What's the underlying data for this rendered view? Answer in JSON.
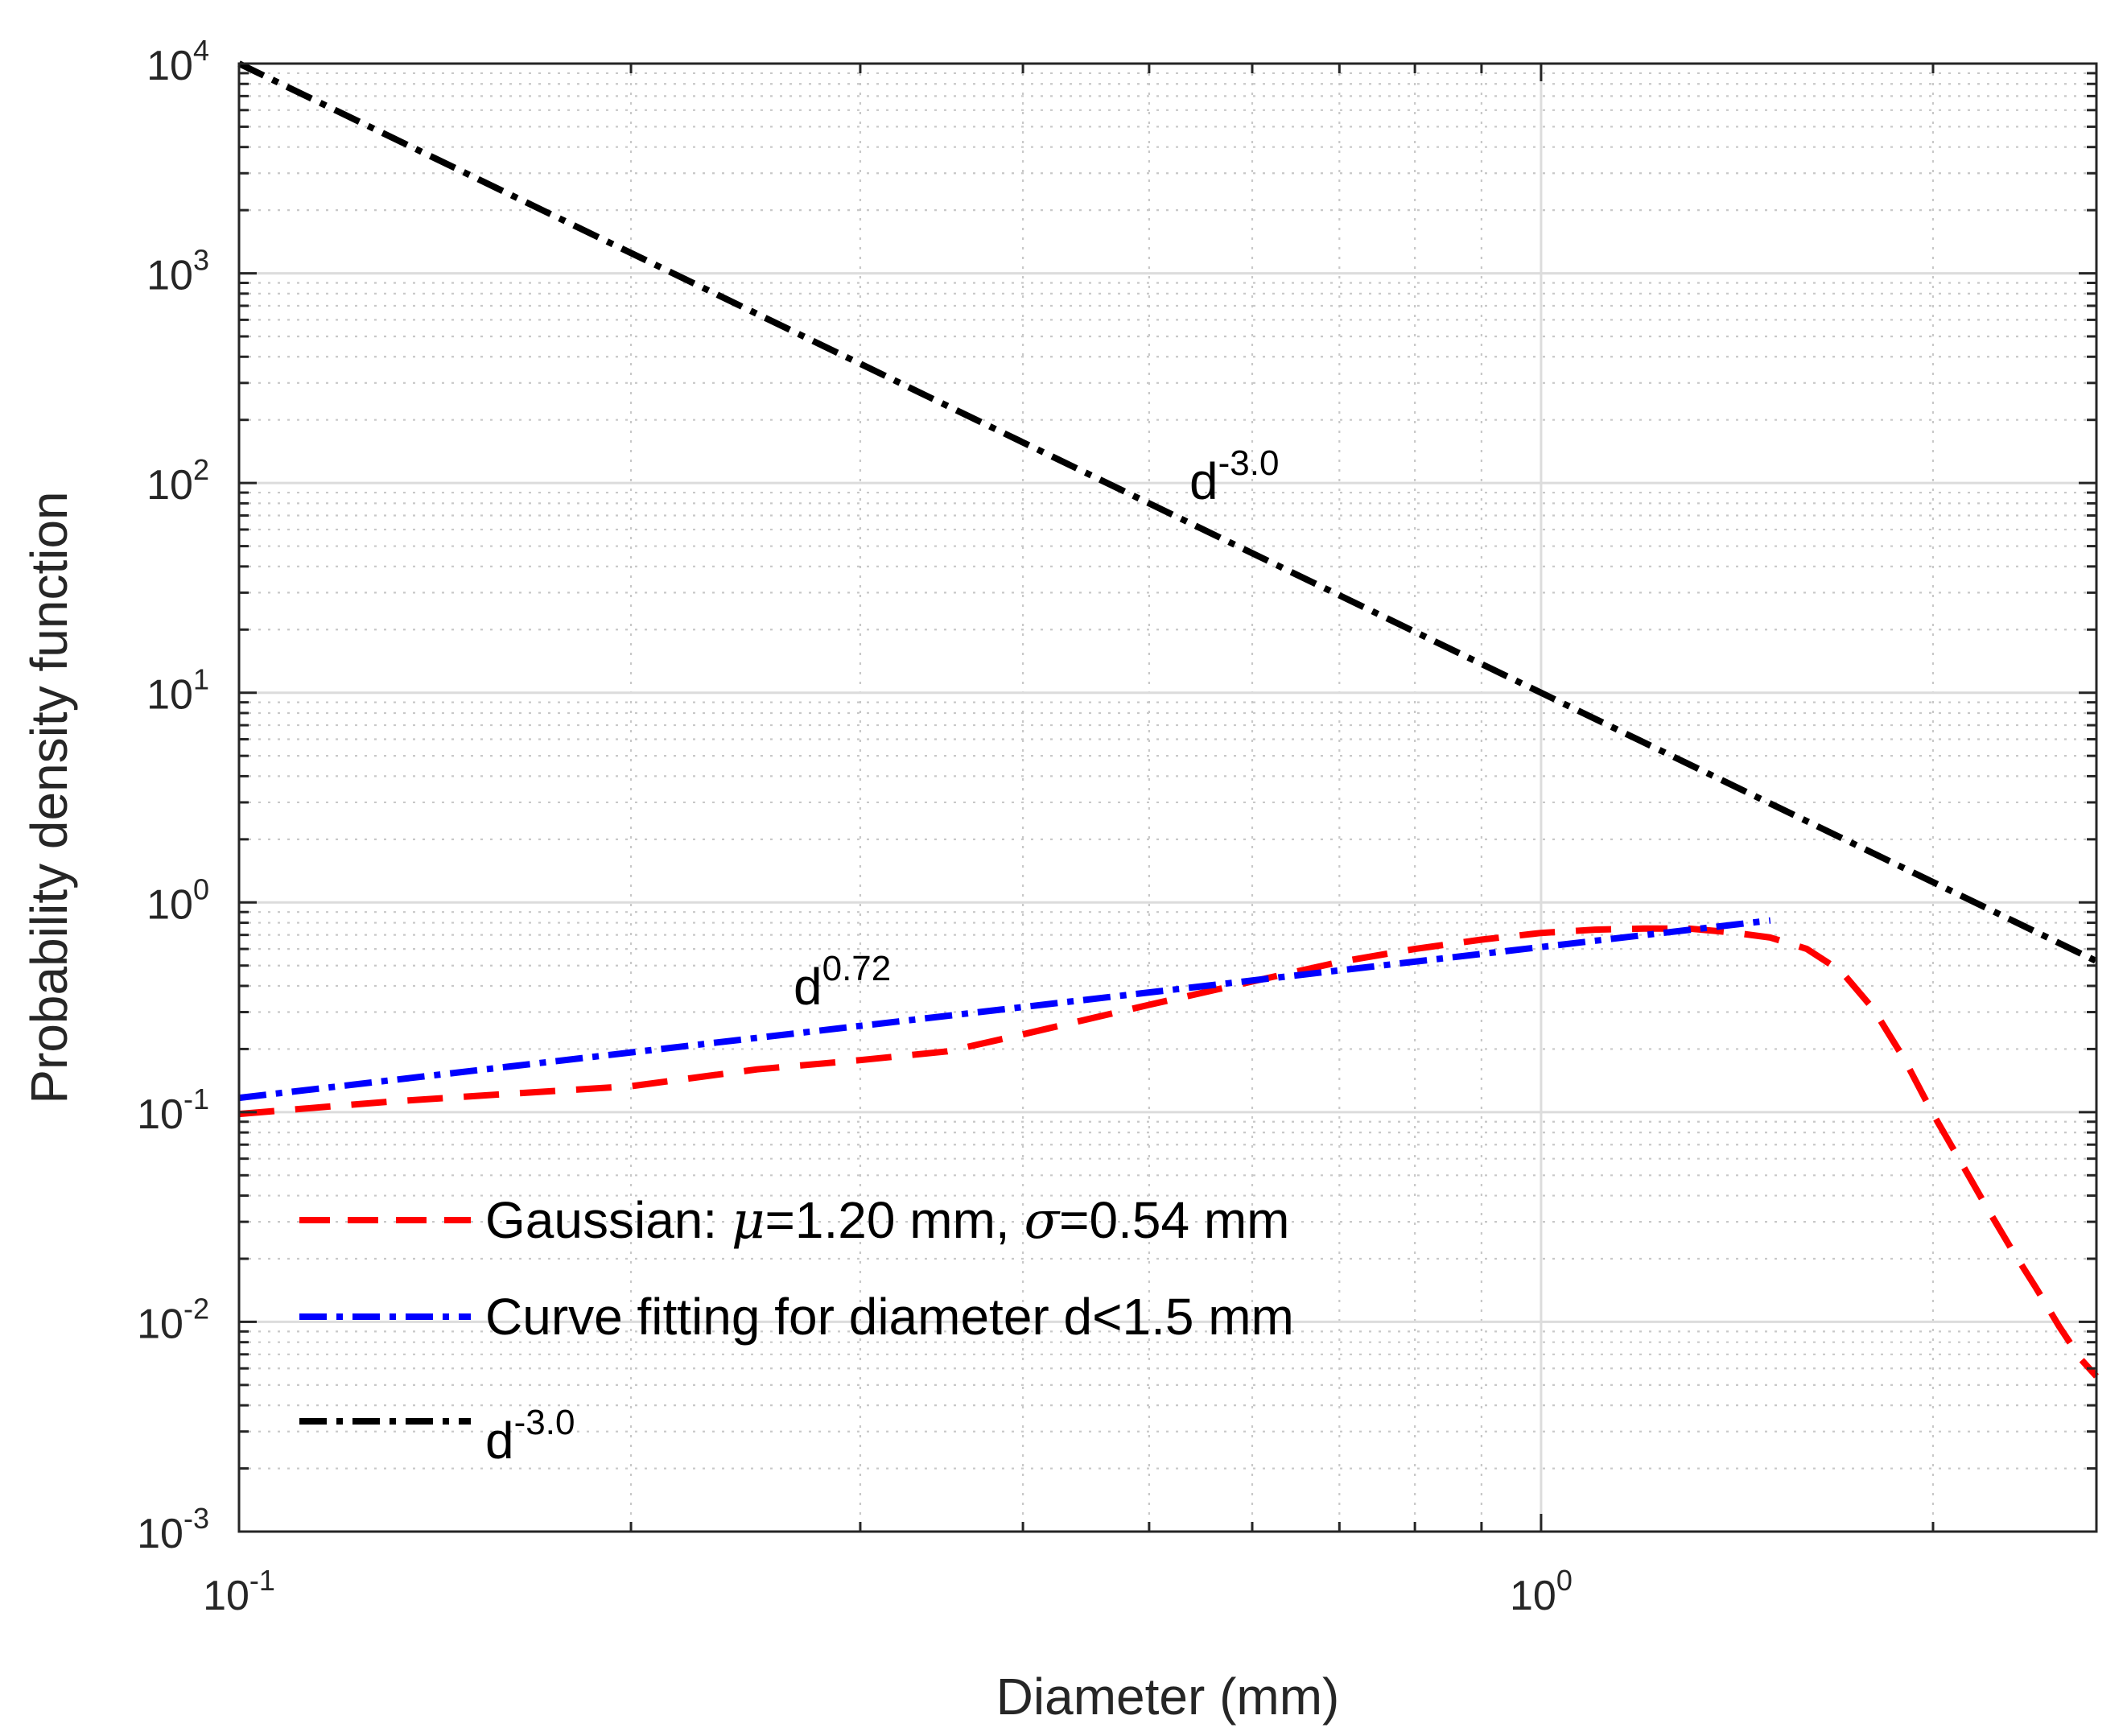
{
  "chart_data": {
    "type": "line",
    "xscale": "log",
    "yscale": "log",
    "xlim": [
      0.1,
      2.67
    ],
    "ylim": [
      0.001,
      10000
    ],
    "xlabel": "Diameter (mm)",
    "ylabel": "Probability density function",
    "x_ticks": [
      {
        "base": "10",
        "exp": "-1",
        "value": 0.1
      },
      {
        "base": "10",
        "exp": "0",
        "value": 1
      }
    ],
    "y_ticks": [
      {
        "base": "10",
        "exp": "-3",
        "value": 0.001
      },
      {
        "base": "10",
        "exp": "-2",
        "value": 0.01
      },
      {
        "base": "10",
        "exp": "-1",
        "value": 0.1
      },
      {
        "base": "10",
        "exp": "0",
        "value": 1
      },
      {
        "base": "10",
        "exp": "1",
        "value": 10
      },
      {
        "base": "10",
        "exp": "2",
        "value": 100
      },
      {
        "base": "10",
        "exp": "3",
        "value": 1000
      },
      {
        "base": "10",
        "exp": "4",
        "value": 10000
      }
    ],
    "grid": "major and minor",
    "series": [
      {
        "name": "Gaussian",
        "legend_parts": {
          "prefix": "Gaussian: ",
          "mu_symbol": "μ",
          "mu_text": "=1.20 mm, ",
          "sigma_symbol": "σ",
          "sigma_text": "=0.54 mm"
        },
        "color": "#ff0000",
        "style": "dashed",
        "x": [
          0.1,
          0.13,
          0.16,
          0.2,
          0.25,
          0.3,
          0.35,
          0.4,
          0.5,
          0.6,
          0.7,
          0.8,
          0.9,
          1.0,
          1.1,
          1.2,
          1.3,
          1.4,
          1.5,
          1.6,
          1.7,
          1.8,
          1.9,
          2.0,
          2.1,
          2.2,
          2.3,
          2.4,
          2.5,
          2.6,
          2.67
        ],
        "y": [
          0.098,
          0.112,
          0.122,
          0.133,
          0.16,
          0.177,
          0.195,
          0.235,
          0.325,
          0.42,
          0.52,
          0.6,
          0.665,
          0.715,
          0.742,
          0.75,
          0.75,
          0.72,
          0.68,
          0.6,
          0.47,
          0.31,
          0.18,
          0.098,
          0.058,
          0.035,
          0.022,
          0.0145,
          0.0095,
          0.0066,
          0.0055
        ]
      },
      {
        "name": "Curve fitting for diameter d<1.5 mm",
        "color": "#0000ff",
        "style": "dash-dot",
        "x": [
          0.1,
          1.5
        ],
        "y": [
          0.117,
          0.82
        ]
      },
      {
        "name": "d-3.0",
        "legend_parts": {
          "base": "d",
          "exp": "-3.0"
        },
        "color": "#000000",
        "style": "dash-dot",
        "x": [
          0.1,
          2.67
        ],
        "y": [
          10000,
          0.525
        ]
      }
    ],
    "annotations": [
      {
        "base": "d",
        "exp": "-3.0",
        "x": 0.54,
        "y": 85
      },
      {
        "base": "d",
        "exp": "0.72",
        "x": 0.26,
        "y": 0.33
      }
    ],
    "legend_position": "bottom-left"
  }
}
